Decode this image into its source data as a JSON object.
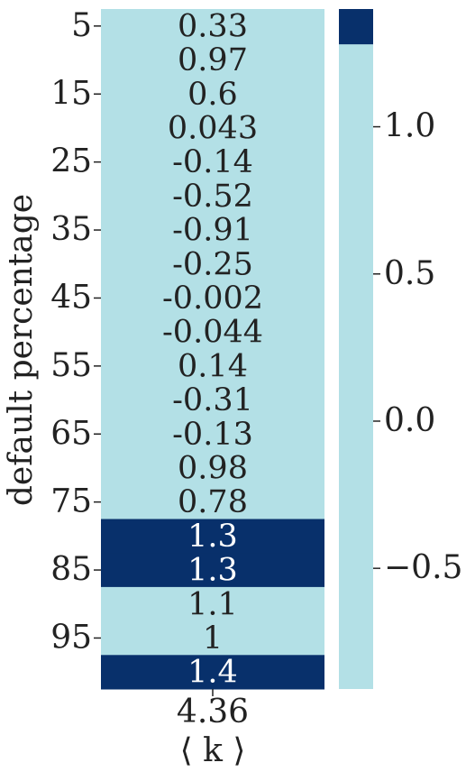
{
  "chart_data": {
    "type": "heatmap",
    "xlabel": "⟨ k ⟩",
    "ylabel": "default percentage",
    "x_categories": [
      "4.36"
    ],
    "y_categories": [
      "5",
      null,
      "15",
      null,
      "25",
      null,
      "35",
      null,
      "45",
      null,
      "55",
      null,
      "65",
      null,
      "75",
      null,
      "85",
      null,
      "95",
      null
    ],
    "values": [
      0.33,
      0.97,
      0.6,
      0.043,
      -0.14,
      -0.52,
      -0.91,
      -0.25,
      -0.002,
      -0.044,
      0.14,
      -0.31,
      -0.13,
      0.98,
      0.78,
      1.3,
      1.3,
      1.1,
      1,
      1.4
    ],
    "colorbar": {
      "clim": [
        -0.91,
        1.4
      ],
      "ticks": [
        {
          "value": -0.5,
          "label": "−0.5"
        },
        {
          "value": 0,
          "label": "0.0"
        },
        0.5,
        {
          "value": 1,
          "label": "1.0"
        }
      ],
      "bands": [
        {
          "from": -0.91,
          "to": 1.28,
          "color": "#b3e0e6",
          "text_color": "#222222"
        },
        {
          "from": 1.28,
          "to": 1.4,
          "color": "#08306b",
          "text_color": "#ffffff"
        }
      ]
    }
  }
}
